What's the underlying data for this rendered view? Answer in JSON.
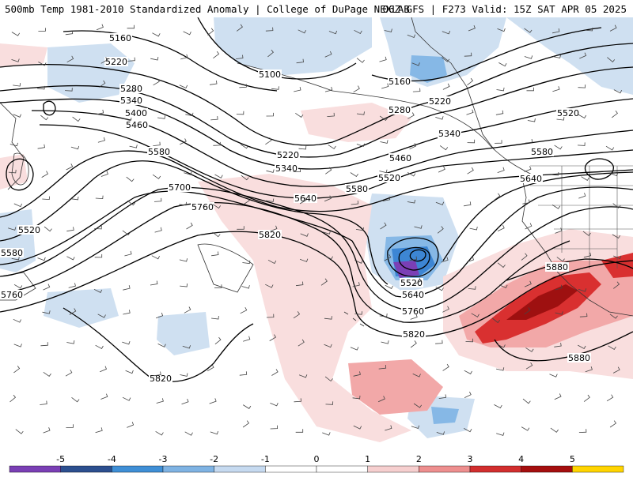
{
  "header": {
    "title_left": "500mb Temp 1981-2010 Standardized Anomaly | College of DuPage NEXLAB",
    "title_right": "06Z GFS | F273 Valid: 15Z SAT APR 05 2025"
  },
  "colorbar": {
    "ticks": [
      "-5",
      "-4",
      "-3",
      "-2",
      "-1",
      "0",
      "1",
      "2",
      "3",
      "4",
      "5"
    ],
    "colors": [
      "#7a3fb5",
      "#2c4f8f",
      "#3f8fd6",
      "#7fb3e3",
      "#c6daf0",
      "#ffffff",
      "#ffffff",
      "#f6cfcf",
      "#ee8f8f",
      "#d22e2e",
      "#a50e0e",
      "#ffd400"
    ]
  },
  "contours": {
    "heights": [
      "5100",
      "5160",
      "5220",
      "5280",
      "5340",
      "5400",
      "5460",
      "5520",
      "5580",
      "5640",
      "5700",
      "5760",
      "5820",
      "5880"
    ],
    "line_color": "#000000"
  },
  "map_legend_colors": {
    "warm_light": "#f9dede",
    "warm_mid": "#f2a8a8",
    "warm_strong": "#d93030",
    "warm_dark": "#9e1010",
    "cold_light": "#cfe0f1",
    "cold_mid": "#86b8e6",
    "cold_strong": "#3d86d4",
    "cold_deep": "#7b3fb5"
  }
}
